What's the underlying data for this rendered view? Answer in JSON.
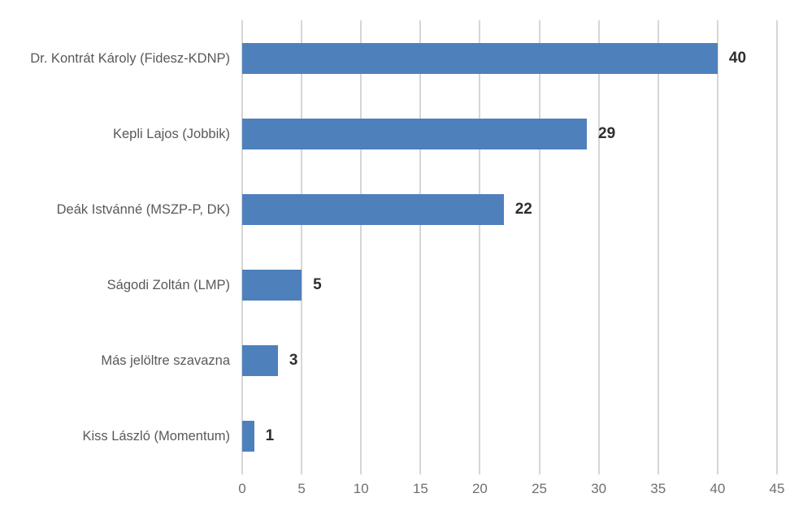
{
  "chart_data": {
    "type": "bar",
    "orientation": "horizontal",
    "title": "",
    "xlabel": "",
    "ylabel": "",
    "categories": [
      "Dr. Kontrát Károly (Fidesz-KDNP)",
      "Kepli Lajos (Jobbik)",
      "Deák Istvánné (MSZP-P, DK)",
      "Ságodi Zoltán (LMP)",
      "Más jelöltre szavazna",
      "Kiss László (Momentum)"
    ],
    "values": [
      40,
      29,
      22,
      5,
      3,
      1
    ],
    "data_labels": [
      "40",
      "29",
      "22",
      "5",
      "3",
      "1"
    ],
    "x_ticks": [
      0,
      5,
      10,
      15,
      20,
      25,
      30,
      35,
      40,
      45
    ],
    "xlim": [
      0,
      45
    ],
    "grid": "vertical-gridlines-on",
    "legend": "none",
    "colors": {
      "bar": "#4e80bc",
      "gridline": "#d6d6d6",
      "category_label": "#595959",
      "value_label": "#2e2e2e",
      "tick_label": "#6f6f6f",
      "background": "#ffffff"
    }
  }
}
